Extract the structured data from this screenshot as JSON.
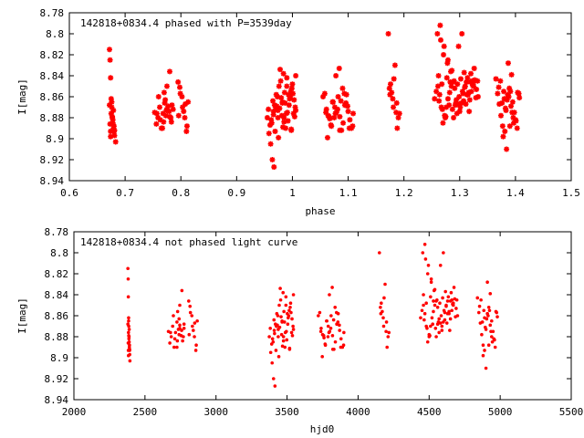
{
  "colors": {
    "marker": "#ff0000",
    "axis": "#000000",
    "background": "#ffffff"
  },
  "chart_data": [
    {
      "type": "scatter",
      "title": "142818+0834.4 phased with P=3539day",
      "xlabel": "phase",
      "ylabel": "I[mag]",
      "xlim": [
        0.6,
        1.5
      ],
      "ylim": [
        8.78,
        8.94
      ],
      "y_inverted": true,
      "xticks": [
        "0.6",
        "0.7",
        "0.8",
        "0.9",
        "1",
        "1.1",
        "1.2",
        "1.3",
        "1.4",
        "1.5"
      ],
      "yticks": [
        "8.78",
        "8.8",
        "8.82",
        "8.84",
        "8.86",
        "8.88",
        "8.9",
        "8.92",
        "8.94"
      ],
      "grid": false,
      "marker": "asterisk",
      "x": [
        0.672,
        0.673,
        0.674,
        0.675,
        0.676,
        0.677,
        0.678,
        0.679,
        0.68,
        0.681,
        0.672,
        0.675,
        0.678,
        0.68,
        0.674,
        0.677,
        0.673,
        0.679,
        0.676,
        0.681,
        0.683,
        0.674,
        0.753,
        0.756,
        0.759,
        0.762,
        0.765,
        0.768,
        0.771,
        0.774,
        0.777,
        0.78,
        0.783,
        0.786,
        0.76,
        0.77,
        0.775,
        0.78,
        0.763,
        0.773,
        0.779,
        0.767,
        0.772,
        0.782,
        0.757,
        0.784,
        0.769,
        0.775,
        0.795,
        0.799,
        0.803,
        0.807,
        0.81,
        0.813,
        0.798,
        0.805,
        0.811,
        0.802,
        0.808,
        0.796,
        0.955,
        0.958,
        0.961,
        0.964,
        0.967,
        0.97,
        0.973,
        0.976,
        0.979,
        0.982,
        0.985,
        0.988,
        0.991,
        0.994,
        0.997,
        1.0,
        1.003,
        1.006,
        0.957,
        0.963,
        0.969,
        0.975,
        0.981,
        0.987,
        0.993,
        0.999,
        1.005,
        0.96,
        0.966,
        0.972,
        0.978,
        0.984,
        0.99,
        0.996,
        1.002,
        0.962,
        0.968,
        0.974,
        0.98,
        0.986,
        0.992,
        0.998,
        1.004,
        0.965,
        0.971,
        0.977,
        0.983,
        0.989,
        0.995,
        1.001,
        0.966,
        0.974,
        0.982,
        0.99,
        0.998,
        1.006,
        0.97,
        0.985,
        1.055,
        1.058,
        1.061,
        1.064,
        1.067,
        1.07,
        1.073,
        1.076,
        1.079,
        1.082,
        1.085,
        1.088,
        1.091,
        1.094,
        1.097,
        1.1,
        1.103,
        1.106,
        1.109,
        1.06,
        1.066,
        1.072,
        1.078,
        1.084,
        1.09,
        1.096,
        1.102,
        1.108,
        1.063,
        1.069,
        1.075,
        1.081,
        1.087,
        1.093,
        1.099,
        1.077,
        1.085,
        1.172,
        1.174,
        1.176,
        1.178,
        1.18,
        1.182,
        1.184,
        1.186,
        1.188,
        1.19,
        1.192,
        1.175,
        1.181,
        1.187,
        1.255,
        1.258,
        1.261,
        1.264,
        1.267,
        1.27,
        1.273,
        1.276,
        1.279,
        1.282,
        1.285,
        1.288,
        1.291,
        1.294,
        1.297,
        1.3,
        1.303,
        1.306,
        1.309,
        1.312,
        1.315,
        1.318,
        1.321,
        1.324,
        1.327,
        1.33,
        1.333,
        1.26,
        1.266,
        1.272,
        1.278,
        1.284,
        1.29,
        1.296,
        1.302,
        1.308,
        1.314,
        1.32,
        1.326,
        1.332,
        1.263,
        1.269,
        1.275,
        1.281,
        1.287,
        1.293,
        1.299,
        1.305,
        1.311,
        1.317,
        1.323,
        1.329,
        1.265,
        1.271,
        1.277,
        1.283,
        1.289,
        1.295,
        1.301,
        1.307,
        1.313,
        1.319,
        1.325,
        1.262,
        1.274,
        1.286,
        1.298,
        1.31,
        1.322,
        1.279,
        1.304,
        1.316,
        1.292,
        1.268,
        1.365,
        1.368,
        1.371,
        1.374,
        1.377,
        1.38,
        1.383,
        1.386,
        1.389,
        1.392,
        1.395,
        1.398,
        1.401,
        1.404,
        1.407,
        1.37,
        1.376,
        1.382,
        1.388,
        1.394,
        1.4,
        1.406,
        1.373,
        1.379,
        1.385,
        1.391,
        1.397,
        1.403,
        1.378,
        1.39,
        1.384,
        1.396,
        1.381,
        1.393,
        1.387
      ],
      "y": [
        8.815,
        8.825,
        8.842,
        8.862,
        8.87,
        8.88,
        8.885,
        8.89,
        8.893,
        8.897,
        8.868,
        8.876,
        8.882,
        8.888,
        8.893,
        8.879,
        8.886,
        8.873,
        8.865,
        8.892,
        8.903,
        8.898,
        8.875,
        8.886,
        8.88,
        8.87,
        8.89,
        8.876,
        8.866,
        8.873,
        8.869,
        8.879,
        8.884,
        8.872,
        8.86,
        8.856,
        8.85,
        8.836,
        8.882,
        8.878,
        8.874,
        8.89,
        8.863,
        8.88,
        8.876,
        8.868,
        8.884,
        8.872,
        8.846,
        8.857,
        8.87,
        8.88,
        8.893,
        8.865,
        8.851,
        8.874,
        8.888,
        8.86,
        8.867,
        8.878,
        8.88,
        8.895,
        8.905,
        8.92,
        8.927,
        8.87,
        8.86,
        8.85,
        8.845,
        8.865,
        8.88,
        8.89,
        8.875,
        8.868,
        8.855,
        8.848,
        8.863,
        8.873,
        8.872,
        8.885,
        8.893,
        8.899,
        8.878,
        8.866,
        8.858,
        8.852,
        8.87,
        8.887,
        8.877,
        8.869,
        8.834,
        8.838,
        8.842,
        8.86,
        8.876,
        8.882,
        8.868,
        8.873,
        8.861,
        8.856,
        8.883,
        8.891,
        8.879,
        8.864,
        8.858,
        8.871,
        8.889,
        8.876,
        8.862,
        8.857,
        8.874,
        8.88,
        8.866,
        8.85,
        8.892,
        8.84,
        8.87,
        8.884,
        8.86,
        8.857,
        8.872,
        8.878,
        8.881,
        8.888,
        8.865,
        8.87,
        8.875,
        8.86,
        8.879,
        8.892,
        8.885,
        8.868,
        8.858,
        8.874,
        8.882,
        8.89,
        8.876,
        8.875,
        8.879,
        8.865,
        8.84,
        8.833,
        8.852,
        8.866,
        8.89,
        8.888,
        8.899,
        8.887,
        8.88,
        8.872,
        8.864,
        8.857,
        8.869,
        8.876,
        8.892,
        8.8,
        8.852,
        8.848,
        8.856,
        8.862,
        8.843,
        8.83,
        8.875,
        8.89,
        8.88,
        8.876,
        8.858,
        8.87,
        8.866,
        8.862,
        8.855,
        8.85,
        8.858,
        8.87,
        8.885,
        8.878,
        8.87,
        8.862,
        8.856,
        8.85,
        8.846,
        8.852,
        8.863,
        8.867,
        8.874,
        8.866,
        8.857,
        8.851,
        8.846,
        8.858,
        8.863,
        8.855,
        8.848,
        8.844,
        8.853,
        8.86,
        8.8,
        8.806,
        8.812,
        8.828,
        8.836,
        8.845,
        8.848,
        8.843,
        8.837,
        8.842,
        8.838,
        8.833,
        8.845,
        8.864,
        8.872,
        8.879,
        8.868,
        8.872,
        8.866,
        8.86,
        8.855,
        8.867,
        8.874,
        8.849,
        8.861,
        8.792,
        8.82,
        8.842,
        8.846,
        8.88,
        8.876,
        8.87,
        8.864,
        8.858,
        8.846,
        8.85,
        8.84,
        8.88,
        8.835,
        8.812,
        8.85,
        8.845,
        8.825,
        8.8,
        8.856,
        8.868,
        8.848,
        8.843,
        8.857,
        8.867,
        8.878,
        8.888,
        8.862,
        8.873,
        8.858,
        8.852,
        8.869,
        8.865,
        8.875,
        8.883,
        8.856,
        8.861,
        8.851,
        8.866,
        8.871,
        8.86,
        8.875,
        8.882,
        8.857,
        8.845,
        8.855,
        8.863,
        8.855,
        8.885,
        8.89,
        8.898,
        8.888,
        8.91,
        8.88,
        8.893,
        8.839,
        8.828
      ]
    },
    {
      "type": "scatter",
      "title": "142818+0834.4 not phased light curve",
      "xlabel": "hjd0",
      "ylabel": "I[mag]",
      "xlim": [
        2000,
        5500
      ],
      "ylim": [
        8.78,
        8.94
      ],
      "y_inverted": true,
      "xticks": [
        "2000",
        "2500",
        "3000",
        "3500",
        "4000",
        "4500",
        "5000",
        "5500"
      ],
      "yticks": [
        "8.78",
        "8.8",
        "8.82",
        "8.84",
        "8.86",
        "8.88",
        "8.9",
        "8.92",
        "8.94"
      ],
      "grid": false,
      "marker": "dot",
      "x": [
        2380,
        2382,
        2383,
        2385,
        2386,
        2388,
        2389,
        2390,
        2392,
        2393,
        2380,
        2384,
        2387,
        2391,
        2383,
        2386,
        2382,
        2389,
        2385,
        2392,
        2394,
        2384,
        2665,
        2675,
        2685,
        2695,
        2705,
        2715,
        2725,
        2735,
        2745,
        2755,
        2765,
        2775,
        2700,
        2730,
        2745,
        2760,
        2710,
        2740,
        2758,
        2725,
        2740,
        2770,
        2680,
        2775,
        2728,
        2745,
        2808,
        2820,
        2834,
        2848,
        2858,
        2868,
        2817,
        2840,
        2861,
        2830,
        2850,
        2811,
        3375,
        3385,
        3395,
        3405,
        3415,
        3425,
        3435,
        3445,
        3455,
        3465,
        3475,
        3485,
        3495,
        3505,
        3515,
        3525,
        3535,
        3545,
        3382,
        3402,
        3422,
        3442,
        3462,
        3482,
        3502,
        3522,
        3542,
        3392,
        3412,
        3432,
        3452,
        3472,
        3492,
        3512,
        3532,
        3398,
        3418,
        3438,
        3458,
        3478,
        3498,
        3518,
        3538,
        3408,
        3428,
        3448,
        3468,
        3488,
        3508,
        3528,
        3410,
        3438,
        3465,
        3492,
        3518,
        3545,
        3425,
        3475,
        3720,
        3730,
        3740,
        3750,
        3760,
        3770,
        3780,
        3790,
        3800,
        3810,
        3820,
        3830,
        3840,
        3850,
        3860,
        3870,
        3880,
        3890,
        3900,
        3738,
        3758,
        3778,
        3798,
        3818,
        3838,
        3858,
        3878,
        3898,
        3748,
        3768,
        3788,
        3808,
        3828,
        3848,
        3868,
        3795,
        3822,
        4150,
        4157,
        4163,
        4170,
        4177,
        4183,
        4190,
        4197,
        4204,
        4211,
        4217,
        4160,
        4180,
        4200,
        4440,
        4450,
        4460,
        4470,
        4480,
        4490,
        4500,
        4510,
        4520,
        4530,
        4540,
        4550,
        4560,
        4570,
        4580,
        4590,
        4600,
        4610,
        4620,
        4630,
        4640,
        4650,
        4660,
        4670,
        4680,
        4690,
        4700,
        4455,
        4475,
        4495,
        4515,
        4535,
        4555,
        4575,
        4595,
        4615,
        4635,
        4655,
        4675,
        4695,
        4465,
        4485,
        4505,
        4525,
        4545,
        4565,
        4585,
        4605,
        4625,
        4645,
        4665,
        4685,
        4470,
        4490,
        4510,
        4530,
        4550,
        4570,
        4590,
        4610,
        4630,
        4650,
        4670,
        4460,
        4500,
        4540,
        4580,
        4620,
        4660,
        4515,
        4600,
        4640,
        4560,
        4480,
        4840,
        4850,
        4860,
        4870,
        4880,
        4890,
        4900,
        4910,
        4920,
        4930,
        4940,
        4950,
        4960,
        4970,
        4980,
        4855,
        4875,
        4895,
        4915,
        4935,
        4955,
        4975,
        4865,
        4885,
        4905,
        4925,
        4945,
        4965,
        4880,
        4920,
        4900,
        4940,
        4890,
        4930,
        4910
      ],
      "y": [
        8.815,
        8.825,
        8.842,
        8.862,
        8.87,
        8.88,
        8.885,
        8.89,
        8.893,
        8.897,
        8.868,
        8.876,
        8.882,
        8.888,
        8.893,
        8.879,
        8.886,
        8.873,
        8.865,
        8.892,
        8.903,
        8.898,
        8.875,
        8.886,
        8.88,
        8.87,
        8.89,
        8.876,
        8.866,
        8.873,
        8.869,
        8.879,
        8.884,
        8.872,
        8.86,
        8.856,
        8.85,
        8.836,
        8.882,
        8.878,
        8.874,
        8.89,
        8.863,
        8.88,
        8.876,
        8.868,
        8.884,
        8.872,
        8.846,
        8.857,
        8.87,
        8.88,
        8.893,
        8.865,
        8.851,
        8.874,
        8.888,
        8.86,
        8.867,
        8.878,
        8.88,
        8.895,
        8.905,
        8.92,
        8.927,
        8.87,
        8.86,
        8.85,
        8.845,
        8.865,
        8.88,
        8.89,
        8.875,
        8.868,
        8.855,
        8.848,
        8.863,
        8.873,
        8.872,
        8.885,
        8.893,
        8.899,
        8.878,
        8.866,
        8.858,
        8.852,
        8.87,
        8.887,
        8.877,
        8.869,
        8.834,
        8.838,
        8.842,
        8.86,
        8.876,
        8.882,
        8.868,
        8.873,
        8.861,
        8.856,
        8.883,
        8.891,
        8.879,
        8.864,
        8.858,
        8.871,
        8.889,
        8.876,
        8.862,
        8.857,
        8.874,
        8.88,
        8.866,
        8.85,
        8.892,
        8.84,
        8.87,
        8.884,
        8.86,
        8.857,
        8.872,
        8.878,
        8.881,
        8.888,
        8.865,
        8.87,
        8.875,
        8.86,
        8.879,
        8.892,
        8.885,
        8.868,
        8.858,
        8.874,
        8.882,
        8.89,
        8.876,
        8.875,
        8.879,
        8.865,
        8.84,
        8.833,
        8.852,
        8.866,
        8.89,
        8.888,
        8.899,
        8.887,
        8.88,
        8.872,
        8.864,
        8.857,
        8.869,
        8.876,
        8.892,
        8.8,
        8.852,
        8.848,
        8.856,
        8.862,
        8.843,
        8.83,
        8.875,
        8.89,
        8.88,
        8.876,
        8.858,
        8.87,
        8.866,
        8.862,
        8.855,
        8.85,
        8.858,
        8.87,
        8.885,
        8.878,
        8.87,
        8.862,
        8.856,
        8.85,
        8.846,
        8.852,
        8.863,
        8.867,
        8.874,
        8.866,
        8.857,
        8.851,
        8.846,
        8.858,
        8.863,
        8.855,
        8.848,
        8.844,
        8.853,
        8.86,
        8.8,
        8.806,
        8.812,
        8.828,
        8.836,
        8.845,
        8.848,
        8.843,
        8.837,
        8.842,
        8.838,
        8.833,
        8.845,
        8.864,
        8.872,
        8.879,
        8.868,
        8.872,
        8.866,
        8.86,
        8.855,
        8.867,
        8.874,
        8.849,
        8.861,
        8.792,
        8.82,
        8.842,
        8.846,
        8.88,
        8.876,
        8.87,
        8.864,
        8.858,
        8.846,
        8.85,
        8.84,
        8.88,
        8.835,
        8.812,
        8.85,
        8.845,
        8.825,
        8.8,
        8.856,
        8.868,
        8.848,
        8.843,
        8.857,
        8.867,
        8.878,
        8.888,
        8.862,
        8.873,
        8.858,
        8.852,
        8.869,
        8.865,
        8.875,
        8.883,
        8.856,
        8.861,
        8.851,
        8.866,
        8.871,
        8.86,
        8.875,
        8.882,
        8.857,
        8.845,
        8.855,
        8.863,
        8.855,
        8.885,
        8.89,
        8.898,
        8.888,
        8.91,
        8.88,
        8.893,
        8.839,
        8.828
      ]
    }
  ]
}
